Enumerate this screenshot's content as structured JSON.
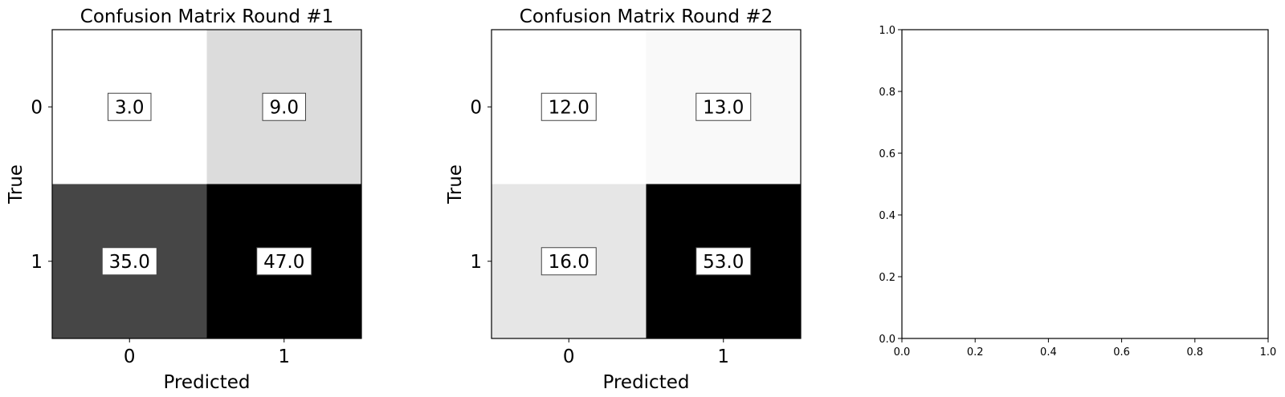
{
  "chart_data": [
    {
      "type": "heatmap",
      "title": "Confusion Matrix Round #1",
      "xlabel": "Predicted",
      "ylabel": "True",
      "x_categories": [
        "0",
        "1"
      ],
      "y_categories": [
        "0",
        "1"
      ],
      "values": [
        [
          3.0,
          9.0
        ],
        [
          35.0,
          47.0
        ]
      ],
      "value_labels": [
        [
          "3.0",
          "9.0"
        ],
        [
          "35.0",
          "47.0"
        ]
      ],
      "colormap": "Greys",
      "grid": false
    },
    {
      "type": "heatmap",
      "title": "Confusion Matrix Round #2",
      "xlabel": "Predicted",
      "ylabel": "True",
      "x_categories": [
        "0",
        "1"
      ],
      "y_categories": [
        "0",
        "1"
      ],
      "values": [
        [
          12.0,
          13.0
        ],
        [
          16.0,
          53.0
        ]
      ],
      "value_labels": [
        [
          "12.0",
          "13.0"
        ],
        [
          "16.0",
          "53.0"
        ]
      ],
      "colormap": "Greys",
      "grid": false
    },
    {
      "type": "scatter",
      "title": "",
      "xlabel": "",
      "ylabel": "",
      "xlim": [
        0.0,
        1.0
      ],
      "ylim": [
        0.0,
        1.0
      ],
      "xticks": [
        "0.0",
        "0.2",
        "0.4",
        "0.6",
        "0.8",
        "1.0"
      ],
      "yticks": [
        "0.0",
        "0.2",
        "0.4",
        "0.6",
        "0.8",
        "1.0"
      ],
      "series": [],
      "grid": false
    }
  ]
}
